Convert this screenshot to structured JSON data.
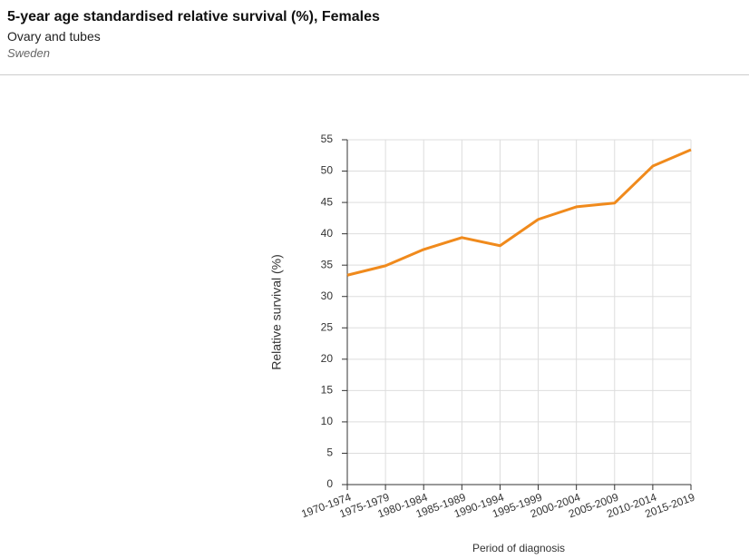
{
  "chart_data": {
    "type": "line",
    "title": "5-year age standardised relative survival (%), Females",
    "subtitle": "Ovary and tubes",
    "caption": "Sweden",
    "x_label": "Period of diagnosis",
    "y_label": "Relative survival (%)",
    "categories": [
      "1970-1974",
      "1975-1979",
      "1980-1984",
      "1985-1989",
      "1990-1994",
      "1995-1999",
      "2000-2004",
      "2005-2009",
      "2010-2014",
      "2015-2019"
    ],
    "series": [
      {
        "name": "Sweden",
        "color": "#f08a1c",
        "values": [
          33.4,
          34.9,
          37.5,
          39.4,
          38.1,
          42.3,
          44.3,
          44.9,
          50.8,
          53.4
        ]
      }
    ],
    "ylim": [
      0,
      55
    ],
    "yticks": [
      0,
      5,
      10,
      15,
      20,
      25,
      30,
      35,
      40,
      45,
      50,
      55
    ],
    "grid": true
  }
}
